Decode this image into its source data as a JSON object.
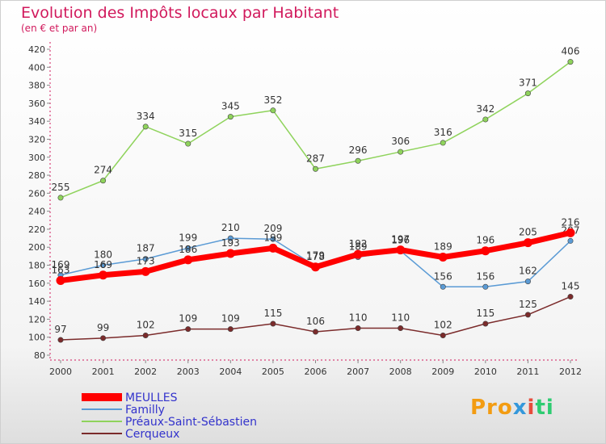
{
  "header": {
    "title": "Evolution des Impôts locaux par Habitant",
    "subtitle": "(en € et par an)"
  },
  "logo": {
    "text": "Proxiti"
  },
  "colors": {
    "MEULLES": "#ff0000",
    "Familly": "#5b9bd5",
    "Préaux-Saint-Sébastien": "#8fd35c",
    "Cerqueux": "#7b2b2b",
    "title": "#d1195c",
    "legend_text": "#3333cc"
  },
  "chart_data": {
    "type": "line",
    "title": "Evolution des Impôts locaux par Habitant",
    "subtitle": "(en € et par an)",
    "xlabel": "",
    "ylabel": "",
    "x": [
      "2000",
      "2001",
      "2002",
      "2003",
      "2004",
      "2005",
      "2006",
      "2007",
      "2008",
      "2009",
      "2010",
      "2011",
      "2012"
    ],
    "ylim": [
      80,
      420
    ],
    "yticks": [
      80,
      100,
      120,
      140,
      160,
      180,
      200,
      220,
      240,
      260,
      280,
      300,
      320,
      340,
      360,
      380,
      400,
      420
    ],
    "grid": false,
    "legend": "bottom-left",
    "series": [
      {
        "name": "MEULLES",
        "values": [
          163,
          169,
          173,
          186,
          193,
          199,
          178,
          192,
          197,
          189,
          196,
          205,
          216
        ]
      },
      {
        "name": "Familly",
        "values": [
          169,
          180,
          187,
          199,
          210,
          209,
          179,
          189,
          196,
          156,
          156,
          162,
          207
        ]
      },
      {
        "name": "Préaux-Saint-Sébastien",
        "values": [
          255,
          274,
          334,
          315,
          345,
          352,
          287,
          296,
          306,
          316,
          342,
          371,
          406
        ]
      },
      {
        "name": "Cerqueux",
        "values": [
          97,
          99,
          102,
          109,
          109,
          115,
          106,
          110,
          110,
          102,
          115,
          125,
          145
        ]
      }
    ]
  }
}
